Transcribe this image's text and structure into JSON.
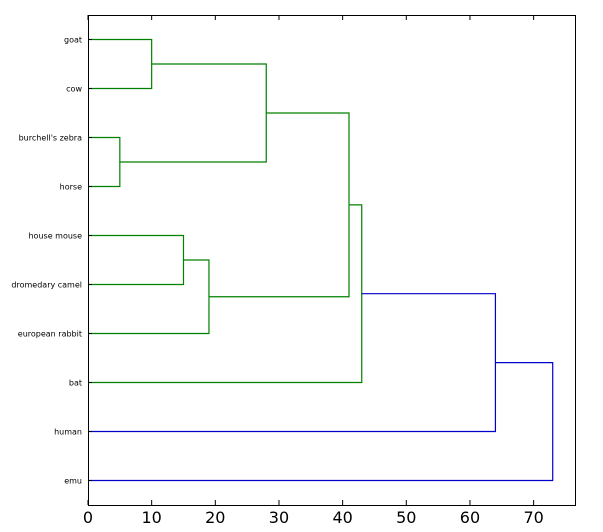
{
  "chart_data": {
    "type": "dendrogram",
    "orientation": "horizontal",
    "leaves": [
      "goat",
      "cow",
      "burchell's zebra",
      "horse",
      "house mouse",
      "dromedary camel",
      "european rabbit",
      "bat",
      "human",
      "emu"
    ],
    "xlim": [
      0,
      76.5
    ],
    "xticks": [
      "0",
      "10",
      "20",
      "30",
      "40",
      "50",
      "60",
      "70"
    ],
    "colors": {
      "green": "#008000",
      "blue": "#0000cc"
    },
    "merges": [
      {
        "a": "goat",
        "b": "cow",
        "height": 10,
        "color": "green"
      },
      {
        "a": "burchell's zebra",
        "b": "horse",
        "height": 5,
        "color": "green"
      },
      {
        "a": "goat+cow",
        "b": "burchell's zebra+horse",
        "height": 28,
        "color": "green"
      },
      {
        "a": "house mouse",
        "b": "dromedary camel",
        "height": 15,
        "color": "green"
      },
      {
        "a": "house mouse+dromedary camel",
        "b": "european rabbit",
        "height": 19,
        "color": "green"
      },
      {
        "a": "group A",
        "b": "group B",
        "height": 41,
        "color": "green"
      },
      {
        "a": "groups A+B",
        "b": "bat",
        "height": 43,
        "color": "green"
      },
      {
        "a": "groups A+B+bat",
        "b": "human",
        "height": 64,
        "color": "blue"
      },
      {
        "a": "all but emu",
        "b": "emu",
        "height": 73,
        "color": "blue"
      }
    ]
  }
}
